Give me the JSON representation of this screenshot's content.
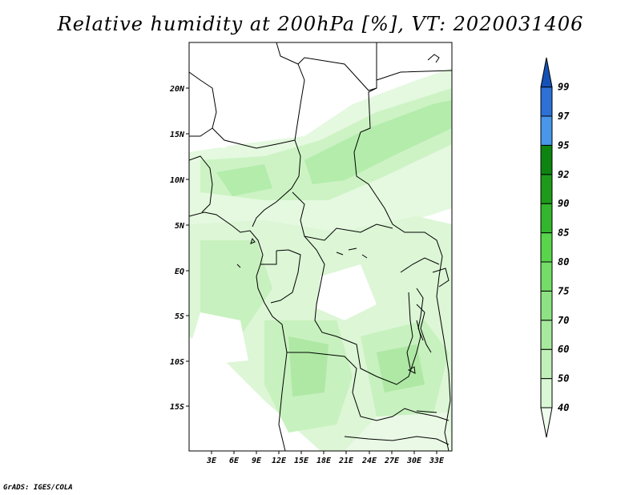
{
  "title": "Relative humidity at 200hPa [%], VT: 2020031406",
  "credit": "GrADS: IGES/COLA",
  "map": {
    "lat_ticks": [
      "20N",
      "15N",
      "10N",
      "5N",
      "EQ",
      "5S",
      "10S",
      "15S"
    ],
    "lon_ticks": [
      "3E",
      "6E",
      "9E",
      "12E",
      "15E",
      "18E",
      "21E",
      "24E",
      "27E",
      "30E",
      "33E"
    ]
  },
  "colorbar": {
    "levels": [
      "40",
      "50",
      "60",
      "70",
      "75",
      "80",
      "85",
      "90",
      "92",
      "95",
      "97",
      "99"
    ],
    "colors": [
      "#effdee",
      "#d9f7d4",
      "#c0f1b8",
      "#a6ea9e",
      "#8de383",
      "#73dd67",
      "#58d54b",
      "#33b52d",
      "#1e9a1a",
      "#0e8410",
      "#4897ea",
      "#2d70d6",
      "#1552b6"
    ]
  }
}
